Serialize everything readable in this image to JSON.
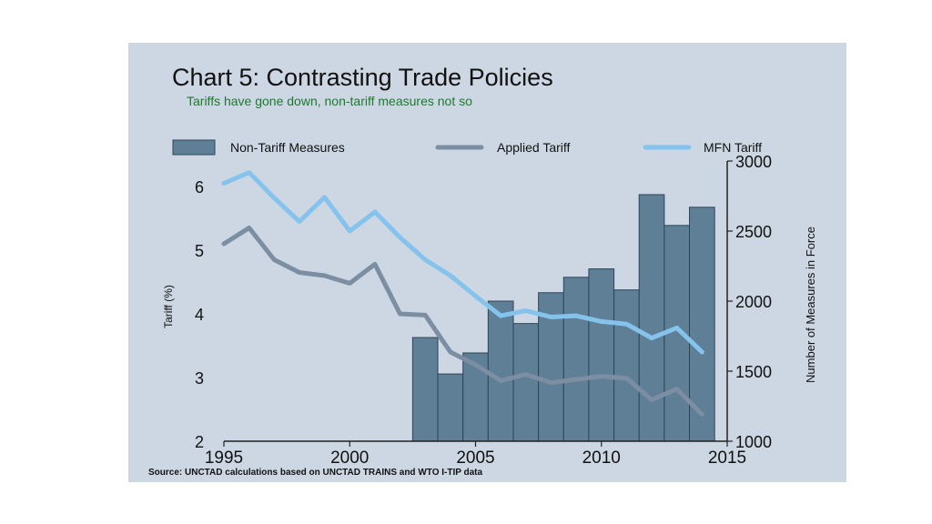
{
  "title": "Chart 5: Contrasting Trade Policies",
  "subtitle": "Tariffs have gone down, non-tariff measures not so",
  "source": "Source: UNCTAD calculations based on UNCTAD TRAINS and WTO I-TIP data",
  "colors": {
    "bars": "#5f7f97",
    "applied": "#7b8ea2",
    "mfn": "#85c3ec",
    "axis": "#222222",
    "background": "#ccd7e3"
  },
  "chart_data": {
    "type": "bar",
    "legend_position": "top",
    "grid": false,
    "xlabel": "",
    "ylabel": "Tariff (%)",
    "y2label": "Number of Measures in Force",
    "xlim": [
      1995,
      2015
    ],
    "ylim": [
      2,
      6.4
    ],
    "y2lim": [
      1000,
      3000
    ],
    "xticks": [
      "1995",
      "2000",
      "2005",
      "2010",
      "2015"
    ],
    "yticks": [
      "2",
      "3",
      "4",
      "5",
      "6"
    ],
    "y2ticks": [
      "1000",
      "1500",
      "2000",
      "2500",
      "3000"
    ],
    "bars": {
      "name": "Non-Tariff Measures",
      "axis": "right",
      "x": [
        2003,
        2004,
        2005,
        2006,
        2007,
        2008,
        2009,
        2010,
        2011,
        2012,
        2013,
        2014
      ],
      "values": [
        1740,
        1480,
        1630,
        2000,
        1840,
        2060,
        2170,
        2230,
        2080,
        2760,
        2540,
        2670
      ]
    },
    "series": [
      {
        "name": "Applied Tariff",
        "axis": "left",
        "x": [
          1995,
          1996,
          1997,
          1998,
          1999,
          2000,
          2001,
          2002,
          2003,
          2004,
          2005,
          2006,
          2007,
          2008,
          2009,
          2010,
          2011,
          2012,
          2013,
          2014
        ],
        "values": [
          5.1,
          5.35,
          4.85,
          4.65,
          4.6,
          4.48,
          4.78,
          4.0,
          3.98,
          3.4,
          3.2,
          2.95,
          3.05,
          2.92,
          2.97,
          3.02,
          2.99,
          2.65,
          2.82,
          2.42
        ]
      },
      {
        "name": "MFN Tariff",
        "axis": "left",
        "x": [
          1995,
          1996,
          1997,
          1998,
          1999,
          2000,
          2001,
          2002,
          2003,
          2004,
          2005,
          2006,
          2007,
          2008,
          2009,
          2010,
          2011,
          2012,
          2013,
          2014
        ],
        "values": [
          6.05,
          6.22,
          5.82,
          5.45,
          5.83,
          5.3,
          5.6,
          5.2,
          4.85,
          4.6,
          4.28,
          3.97,
          4.05,
          3.95,
          3.97,
          3.88,
          3.84,
          3.62,
          3.78,
          3.4
        ]
      }
    ]
  }
}
